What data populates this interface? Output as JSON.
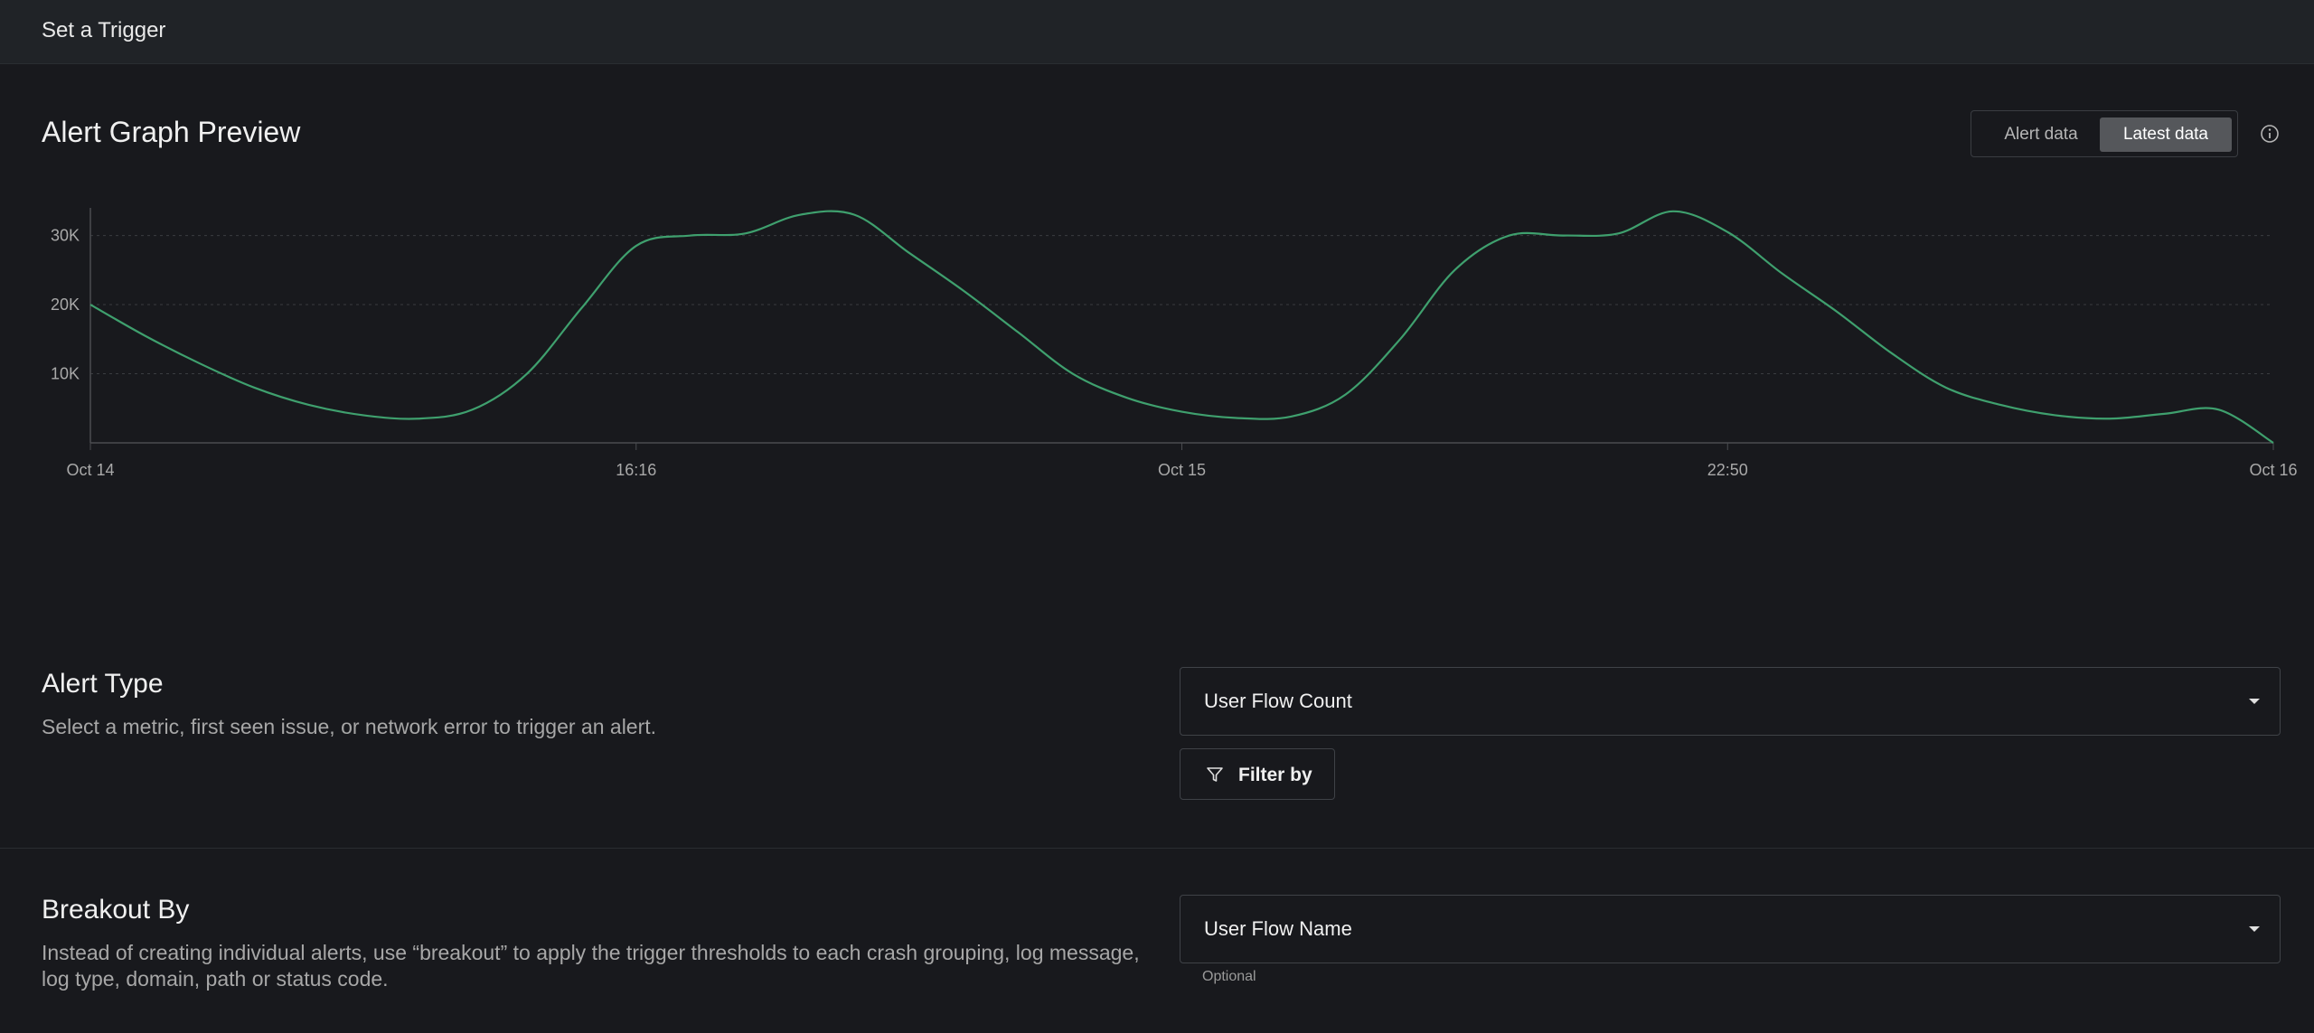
{
  "header": {
    "title": "Set a Trigger"
  },
  "graph": {
    "title": "Alert Graph Preview",
    "toggle": {
      "options": [
        "Alert data",
        "Latest data"
      ],
      "selected": "Latest data"
    }
  },
  "chart_data": {
    "type": "line",
    "title": "",
    "xlabel": "",
    "ylabel": "",
    "y_ticks": [
      "10K",
      "20K",
      "30K"
    ],
    "y_tick_values": [
      10000,
      20000,
      30000
    ],
    "ylim": [
      0,
      34000
    ],
    "x_ticks": [
      "Oct 14",
      "16:16",
      "Oct 15",
      "22:50",
      "Oct 16"
    ],
    "x_tick_positions": [
      0,
      10,
      20,
      30,
      40
    ],
    "grid": true,
    "line_color": "#3fa06e",
    "series": [
      {
        "name": "",
        "x": [
          0,
          1,
          2,
          3,
          4,
          5,
          6,
          7,
          8,
          9,
          10,
          11,
          12,
          13,
          14,
          15,
          16,
          17,
          18,
          19,
          20,
          21,
          22,
          23,
          24,
          25,
          26,
          27,
          28,
          29,
          30,
          31,
          32,
          33,
          34,
          35,
          36,
          37,
          38,
          39,
          40
        ],
        "values": [
          20000,
          15500,
          11500,
          8000,
          5500,
          4000,
          3500,
          4800,
          10000,
          19500,
          28500,
          30000,
          30300,
          33000,
          33000,
          27500,
          22000,
          16000,
          10000,
          6500,
          4500,
          3600,
          3800,
          7000,
          15000,
          25000,
          30000,
          30000,
          30300,
          33500,
          30500,
          24500,
          19000,
          13000,
          8000,
          5500,
          4000,
          3500,
          4200,
          4800,
          0
        ]
      }
    ]
  },
  "alert_type": {
    "title": "Alert Type",
    "description": "Select a metric, first seen issue, or network error to trigger an alert.",
    "selected": "User Flow Count",
    "filter_label": "Filter by"
  },
  "breakout": {
    "title": "Breakout By",
    "description": "Instead of creating individual alerts, use “breakout” to apply the trigger thresholds to each crash grouping, log message, log type, domain, path or status code.",
    "selected": "User Flow Name",
    "helper": "Optional"
  }
}
